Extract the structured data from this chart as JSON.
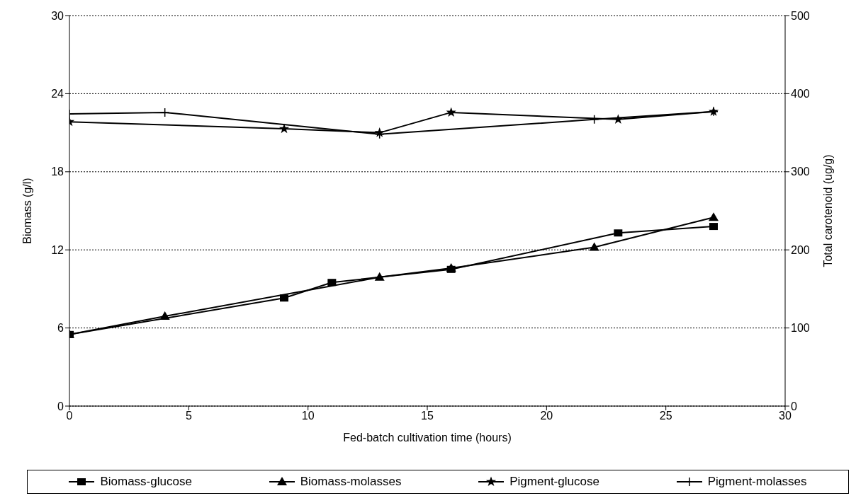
{
  "chart_data": {
    "type": "line",
    "xlabel": "Fed-batch cultivation time (hours)",
    "ylabel": "Biomass (g/l)",
    "y2label": "Total carotenoid (ug/g)",
    "xlim": [
      0,
      30
    ],
    "xticks": [
      0,
      5,
      10,
      15,
      20,
      25,
      30
    ],
    "ylim": [
      0,
      30
    ],
    "yticks": [
      0,
      6,
      12,
      18,
      24,
      30
    ],
    "y2lim": [
      0,
      500
    ],
    "y2ticks": [
      0,
      100,
      200,
      300,
      400,
      500
    ],
    "grid": "y",
    "legend": "bottom",
    "series": [
      {
        "name": "Biomass-glucose",
        "color": "#000000",
        "marker": "square",
        "x": [
          0,
          9,
          11,
          16,
          23,
          27
        ],
        "values": [
          5.5,
          8.3,
          9.5,
          10.5,
          13.3,
          13.8
        ]
      },
      {
        "name": "Biomass-molasses",
        "color": "#000000",
        "marker": "triangle",
        "x": [
          0,
          4,
          13,
          16,
          22,
          27
        ],
        "values": [
          5.5,
          6.9,
          9.9,
          10.6,
          12.2,
          14.5
        ]
      },
      {
        "name": "Pigment-glucose",
        "color": "#000000",
        "marker": "star",
        "axis": "y2",
        "x": [
          0,
          9,
          13,
          16,
          23,
          27
        ],
        "values": [
          364,
          355,
          350,
          376,
          367,
          377
        ]
      },
      {
        "name": "Pigment-molasses",
        "color": "#000000",
        "marker": "cross",
        "axis": "y2",
        "x": [
          0,
          4,
          13,
          22,
          27
        ],
        "values": [
          374,
          376,
          348,
          367,
          377
        ]
      }
    ]
  }
}
